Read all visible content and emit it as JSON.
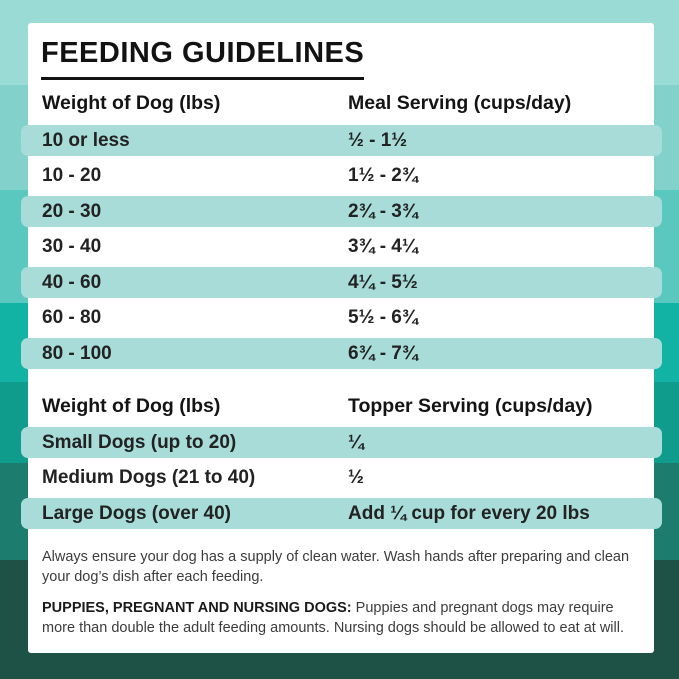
{
  "title": "FEEDING GUIDELINES",
  "meal_table": {
    "col1_header": "Weight of Dog (lbs)",
    "col2_header": "Meal Serving (cups/day)",
    "rows": [
      {
        "weight": "10 or less",
        "serving": "½ - 1½"
      },
      {
        "weight": "10 - 20",
        "serving": "1½ - 2¾"
      },
      {
        "weight": "20 - 30",
        "serving": "2¾ - 3¾"
      },
      {
        "weight": "30 - 40",
        "serving": "3¾ - 4¼"
      },
      {
        "weight": "40 - 60",
        "serving": "4¼ - 5½"
      },
      {
        "weight": "60 - 80",
        "serving": "5½ - 6¾"
      },
      {
        "weight": "80 - 100",
        "serving": "6¾ - 7¾"
      }
    ]
  },
  "topper_table": {
    "col1_header": "Weight of Dog (lbs)",
    "col2_header": "Topper Serving (cups/day)",
    "rows": [
      {
        "weight": "Small Dogs (up to 20)",
        "serving": "¼"
      },
      {
        "weight": "Medium Dogs (21 to 40)",
        "serving": "½"
      },
      {
        "weight": "Large Dogs (over 40)",
        "serving": "Add ¼ cup for every 20 lbs"
      }
    ]
  },
  "notes": {
    "water_note": "Always ensure your dog has a supply of clean water. Wash hands after preparing and clean your dog’s dish after each feeding.",
    "puppies_label": "PUPPIES, PREGNANT AND NURSING DOGS:",
    "puppies_note": " Puppies and pregnant dogs may require more than double the adult feeding amounts. Nursing dogs should be allowed to eat at will."
  },
  "colors": {
    "card_background": "#ffffff",
    "row_shade": "#a7dcd8",
    "title_color": "#121212",
    "table_text_color": "#222222",
    "note_text_color": "#3c3c3c",
    "background_bands": [
      {
        "color": "#9adbd5",
        "to": 85
      },
      {
        "color": "#82d2cb",
        "to": 190
      },
      {
        "color": "#5bc8bf",
        "to": 303
      },
      {
        "color": "#12b2a4",
        "to": 382
      },
      {
        "color": "#0f9c8c",
        "to": 463
      },
      {
        "color": "#1c7c6e",
        "to": 560
      },
      {
        "color": "#1f5247",
        "to": 679
      }
    ]
  }
}
